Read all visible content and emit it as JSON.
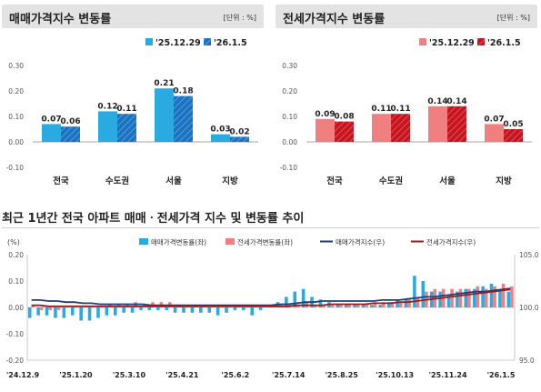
{
  "sale_panel": {
    "title": "매매가격지수 변동률",
    "unit": "[단위 : %]"
  },
  "jeonse_panel": {
    "title": "전세가격지수 변동률",
    "unit": "[단위 : %]"
  },
  "trend_title": "최근 1년간 전국 아파트 매매ㆍ전세가격 지수 및 변동률 추이",
  "colors": {
    "sale_prev": "#29abe2",
    "sale_curr": "#1a73c2",
    "jeonse_prev": "#f08080",
    "jeonse_curr": "#c8141e",
    "sale_index_line": "#1f3f7a",
    "jeonse_index_line": "#9b1c1c",
    "header_bg": "#e3e3e3"
  },
  "chart_data": [
    {
      "type": "bar",
      "id": "sale",
      "categories": [
        "전국",
        "수도권",
        "서울",
        "지방"
      ],
      "series": [
        {
          "name": "'25.12.29",
          "values": [
            0.07,
            0.12,
            0.21,
            0.03
          ]
        },
        {
          "name": "'26.1.5",
          "values": [
            0.06,
            0.11,
            0.18,
            0.02
          ]
        }
      ],
      "yticks": [
        "0.30",
        "0.20",
        "0.10",
        "0.00",
        "-0.10"
      ],
      "ylim": [
        -0.1,
        0.3
      ],
      "legend_position": "top-right"
    },
    {
      "type": "bar",
      "id": "jeonse",
      "categories": [
        "전국",
        "수도권",
        "서울",
        "지방"
      ],
      "series": [
        {
          "name": "'25.12.29",
          "values": [
            0.09,
            0.11,
            0.14,
            0.07
          ]
        },
        {
          "name": "'26.1.5",
          "values": [
            0.08,
            0.11,
            0.14,
            0.05
          ]
        }
      ],
      "yticks": [
        "0.30",
        "0.20",
        "0.10",
        "0.00",
        "-0.10"
      ],
      "ylim": [
        -0.1,
        0.3
      ],
      "legend_position": "top-right"
    },
    {
      "type": "bar",
      "id": "trend",
      "y_left_unit": "(%)",
      "y_left_ticks": [
        "0.20",
        "0.10",
        "0.00",
        "-0.10",
        "-0.20"
      ],
      "y_left_lim": [
        -0.2,
        0.2
      ],
      "y_right_ticks": [
        "105.0",
        "100.0",
        "95.0"
      ],
      "y_right_lim": [
        95.0,
        105.0
      ],
      "x_tick_labels": [
        "'24.12.9",
        "'25.1.20",
        "'25.3.10",
        "'25.4.21",
        "'25.6.2",
        "'25.7.14",
        "'25.8.25",
        "'25.10.13",
        "'25.11.24",
        "'26.1.5"
      ],
      "legend": [
        "매매가격변동률(좌)",
        "전세가격변동률(좌)",
        "매매가격지수(우)",
        "전세가격지수(우)"
      ],
      "weeks": 57,
      "series": [
        {
          "name": "매매가격변동률(좌)",
          "kind": "bar",
          "values": [
            -0.04,
            -0.03,
            -0.03,
            -0.04,
            -0.04,
            -0.03,
            -0.05,
            -0.05,
            -0.04,
            -0.03,
            -0.03,
            -0.02,
            -0.02,
            -0.01,
            -0.01,
            -0.01,
            -0.01,
            -0.02,
            -0.02,
            -0.02,
            -0.02,
            -0.02,
            -0.03,
            -0.02,
            -0.01,
            -0.01,
            -0.03,
            -0.01,
            0.01,
            0.02,
            0.04,
            0.06,
            0.07,
            0.04,
            0.03,
            0.02,
            0.01,
            0.01,
            0.01,
            0.01,
            0.01,
            0.01,
            0.02,
            0.03,
            0.03,
            0.12,
            0.1,
            0.06,
            0.06,
            0.05,
            0.06,
            0.07,
            0.07,
            0.08,
            0.09,
            0.07,
            0.06
          ]
        },
        {
          "name": "전세가격변동률(좌)",
          "kind": "bar",
          "values": [
            0.01,
            -0.01,
            -0.01,
            -0.01,
            0.0,
            0.0,
            0.0,
            0.0,
            0.0,
            0.01,
            0.01,
            0.01,
            0.02,
            0.01,
            0.02,
            0.02,
            0.02,
            0.01,
            0.01,
            0.01,
            0.01,
            0.01,
            0.0,
            0.0,
            0.0,
            0.0,
            0.01,
            0.01,
            0.01,
            0.01,
            0.01,
            0.01,
            0.02,
            0.01,
            0.01,
            0.01,
            0.01,
            0.01,
            0.01,
            0.01,
            0.02,
            0.02,
            0.02,
            0.02,
            0.03,
            0.04,
            0.06,
            0.07,
            0.07,
            0.07,
            0.07,
            0.07,
            0.08,
            0.07,
            0.08,
            0.09,
            0.08
          ]
        },
        {
          "name": "매매가격지수(우)",
          "kind": "line",
          "values": [
            100.7,
            100.7,
            100.6,
            100.6,
            100.5,
            100.5,
            100.4,
            100.4,
            100.3,
            100.3,
            100.3,
            100.3,
            100.3,
            100.3,
            100.2,
            100.2,
            100.2,
            100.2,
            100.2,
            100.2,
            100.2,
            100.2,
            100.2,
            100.2,
            100.2,
            100.2,
            100.2,
            100.2,
            100.2,
            100.3,
            100.3,
            100.4,
            100.5,
            100.5,
            100.6,
            100.6,
            100.6,
            100.6,
            100.6,
            100.6,
            100.6,
            100.7,
            100.7,
            100.7,
            100.8,
            100.9,
            101.0,
            101.0,
            101.1,
            101.2,
            101.3,
            101.4,
            101.5,
            101.5,
            101.6,
            101.7,
            101.8
          ]
        },
        {
          "name": "전세가격지수(우)",
          "kind": "line",
          "values": [
            100.2,
            100.2,
            100.1,
            100.1,
            100.1,
            100.1,
            100.1,
            100.1,
            100.1,
            100.1,
            100.1,
            100.1,
            100.1,
            100.1,
            100.1,
            100.1,
            100.1,
            100.1,
            100.1,
            100.1,
            100.1,
            100.1,
            100.1,
            100.1,
            100.1,
            100.1,
            100.1,
            100.1,
            100.1,
            100.1,
            100.1,
            100.2,
            100.2,
            100.2,
            100.2,
            100.3,
            100.3,
            100.3,
            100.3,
            100.3,
            100.4,
            100.4,
            100.4,
            100.5,
            100.5,
            100.6,
            100.7,
            100.8,
            100.9,
            101.0,
            101.1,
            101.2,
            101.3,
            101.4,
            101.5,
            101.6,
            101.7
          ]
        }
      ]
    }
  ]
}
